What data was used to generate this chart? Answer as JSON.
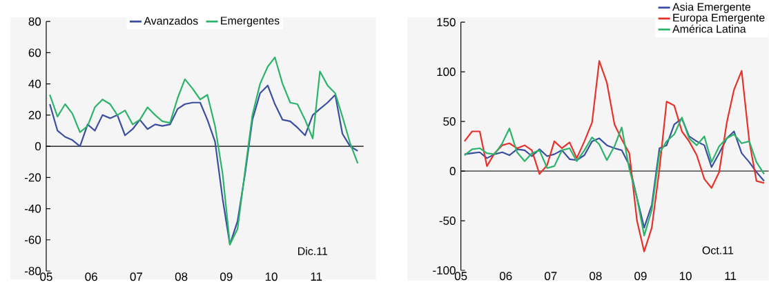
{
  "chart_data": [
    {
      "type": "line",
      "x": [
        2005.08,
        2005.25,
        2005.42,
        2005.58,
        2005.75,
        2005.92,
        2006.08,
        2006.25,
        2006.42,
        2006.58,
        2006.75,
        2006.92,
        2007.08,
        2007.25,
        2007.42,
        2007.58,
        2007.75,
        2007.92,
        2008.08,
        2008.25,
        2008.42,
        2008.58,
        2008.75,
        2008.92,
        2009.08,
        2009.25,
        2009.42,
        2009.58,
        2009.75,
        2009.92,
        2010.08,
        2010.25,
        2010.42,
        2010.58,
        2010.75,
        2010.92,
        2011.08,
        2011.25,
        2011.42,
        2011.58,
        2011.75,
        2011.92
      ],
      "series": [
        {
          "name": "Avanzados",
          "color": "#3a4da0",
          "values": [
            27,
            10,
            6,
            4,
            0,
            14,
            10,
            20,
            18,
            20,
            7,
            11,
            17,
            11,
            14,
            13,
            14,
            24,
            27,
            28,
            28,
            17,
            3,
            -34,
            -63,
            -48,
            -17,
            17,
            34,
            39,
            27,
            17,
            16,
            12,
            7,
            20,
            24,
            28,
            33,
            8,
            0,
            -3
          ]
        },
        {
          "name": "Emergentes",
          "color": "#2cb36a",
          "values": [
            33,
            19,
            27,
            21,
            9,
            13,
            25,
            30,
            27,
            20,
            23,
            14,
            17,
            25,
            20,
            16,
            15,
            31,
            43,
            37,
            30,
            33,
            13,
            -18,
            -63,
            -53,
            -15,
            20,
            40,
            51,
            57,
            40,
            28,
            27,
            17,
            5,
            48,
            39,
            34,
            19,
            2,
            -11
          ]
        }
      ],
      "xlim": [
        2005,
        2012.05
      ],
      "ylim": [
        -80,
        80
      ],
      "xticks": [
        {
          "value": 2005,
          "label": "05"
        },
        {
          "value": 2006,
          "label": "06"
        },
        {
          "value": 2007,
          "label": "07"
        },
        {
          "value": 2008,
          "label": "08"
        },
        {
          "value": 2009,
          "label": "09"
        },
        {
          "value": 2010,
          "label": "10"
        },
        {
          "value": 2011,
          "label": "11"
        }
      ],
      "yticks": [
        -80,
        -60,
        -40,
        -20,
        0,
        20,
        40,
        60,
        80
      ],
      "ref_lines": [
        {
          "axis": "y",
          "value": 0
        }
      ],
      "annotations": [
        "Dic.11"
      ],
      "legend": "top"
    },
    {
      "type": "line",
      "x": [
        2005.08,
        2005.25,
        2005.42,
        2005.58,
        2005.75,
        2005.92,
        2006.08,
        2006.25,
        2006.42,
        2006.58,
        2006.75,
        2006.92,
        2007.08,
        2007.25,
        2007.42,
        2007.58,
        2007.75,
        2007.92,
        2008.08,
        2008.25,
        2008.42,
        2008.58,
        2008.75,
        2008.92,
        2009.08,
        2009.25,
        2009.42,
        2009.58,
        2009.75,
        2009.92,
        2010.08,
        2010.25,
        2010.42,
        2010.58,
        2010.75,
        2010.92,
        2011.08,
        2011.25,
        2011.42,
        2011.58,
        2011.75
      ],
      "series": [
        {
          "name": "Asia Emergente",
          "color": "#3a4da0",
          "values": [
            17,
            18,
            19,
            13,
            17,
            19,
            16,
            22,
            21,
            15,
            22,
            15,
            17,
            21,
            12,
            11,
            16,
            30,
            33,
            26,
            23,
            21,
            6,
            -27,
            -57,
            -34,
            23,
            26,
            47,
            53,
            35,
            30,
            26,
            4,
            18,
            33,
            40,
            18,
            9,
            -1,
            -10
          ]
        },
        {
          "name": "Europa Emergente",
          "color": "#e8302a",
          "values": [
            30,
            40,
            40,
            5,
            18,
            26,
            28,
            23,
            26,
            21,
            -3,
            6,
            30,
            23,
            29,
            13,
            30,
            49,
            111,
            89,
            47,
            32,
            18,
            -50,
            -81,
            -57,
            2,
            70,
            66,
            40,
            30,
            16,
            -8,
            -17,
            -1,
            49,
            82,
            101,
            30,
            -10,
            -12
          ]
        },
        {
          "name": "América Latina",
          "color": "#2cb36a",
          "values": [
            16,
            22,
            23,
            18,
            17,
            28,
            43,
            19,
            10,
            18,
            21,
            3,
            5,
            21,
            23,
            10,
            21,
            34,
            27,
            11,
            25,
            44,
            2,
            -27,
            -65,
            -39,
            18,
            30,
            37,
            54,
            33,
            26,
            35,
            9,
            25,
            33,
            37,
            28,
            30,
            9,
            -3
          ]
        }
      ],
      "xlim": [
        2005,
        2011.85
      ],
      "ylim": [
        -100,
        150
      ],
      "xticks": [
        {
          "value": 2005,
          "label": "05"
        },
        {
          "value": 2006,
          "label": "06"
        },
        {
          "value": 2007,
          "label": "07"
        },
        {
          "value": 2008,
          "label": "08"
        },
        {
          "value": 2009,
          "label": "09"
        },
        {
          "value": 2010,
          "label": "10"
        },
        {
          "value": 2011,
          "label": "11"
        }
      ],
      "yticks": [
        -100,
        -50,
        0,
        50,
        100,
        150
      ],
      "ref_lines": [
        {
          "axis": "y",
          "value": 0
        }
      ],
      "annotations": [
        "Oct.11"
      ],
      "legend": "top right"
    }
  ]
}
